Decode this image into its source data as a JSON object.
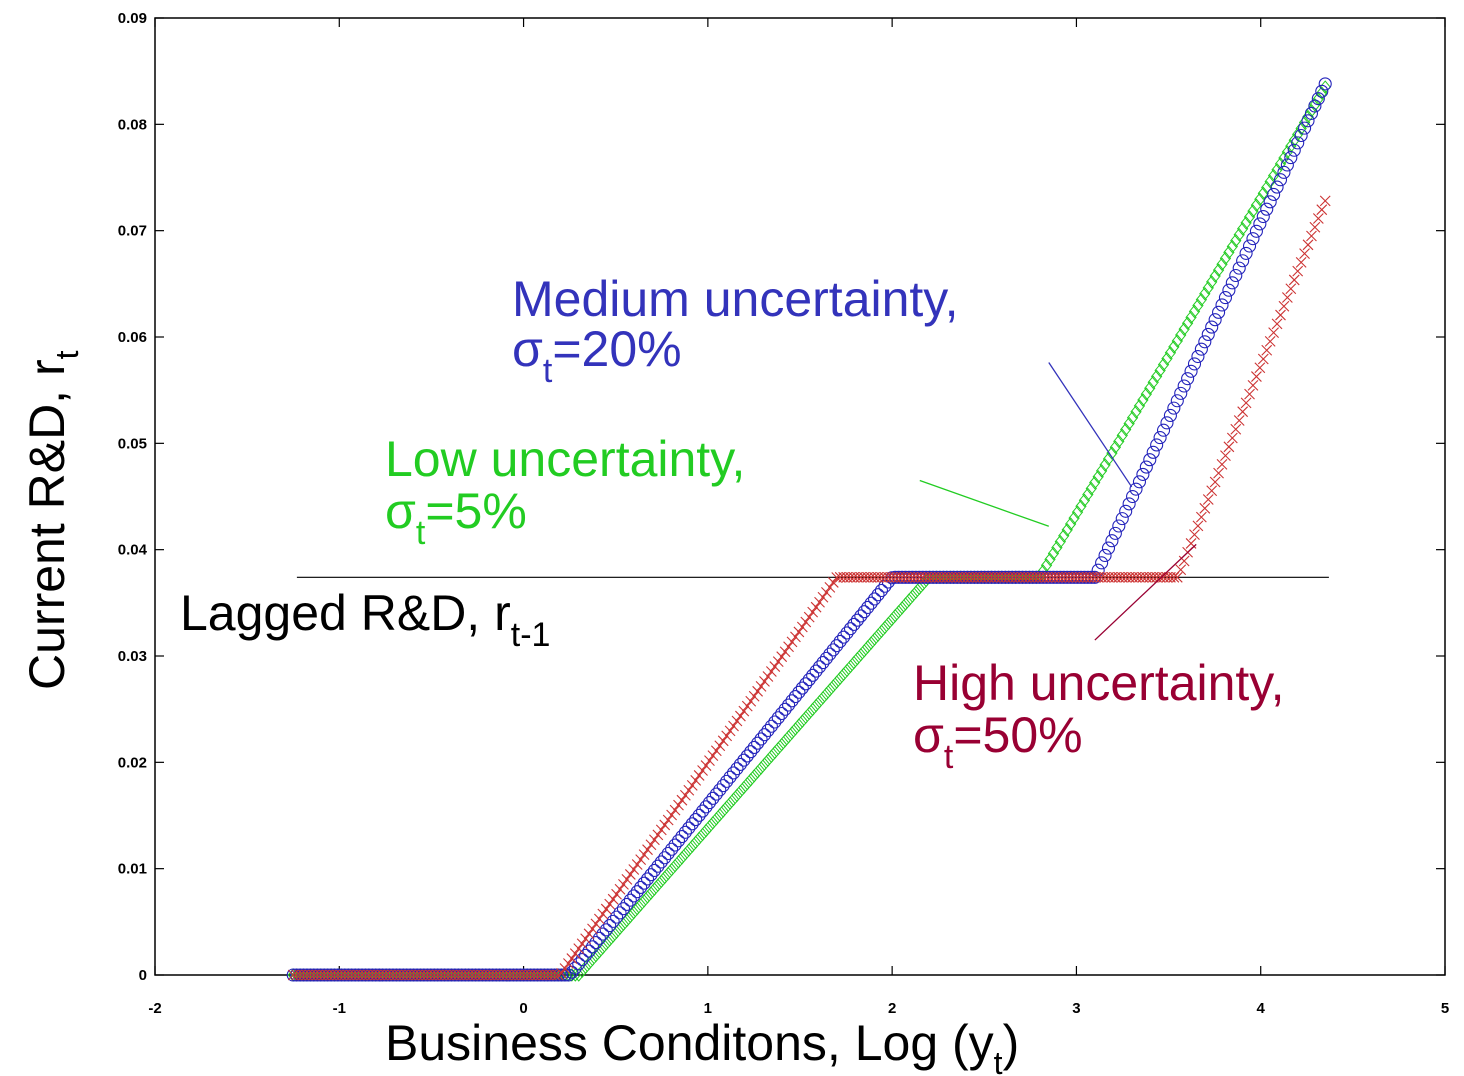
{
  "chart_data": {
    "type": "scatter",
    "title": "",
    "xlabel": "Business Conditons, Log (y",
    "xlabel_sub": "t",
    "xlabel_suffix": ")",
    "ylabel": "Current R&D, r",
    "ylabel_sub": "t",
    "xlim": [
      -2,
      5
    ],
    "ylim": [
      0,
      0.09
    ],
    "xticks": [
      -2,
      -1,
      0,
      1,
      2,
      3,
      4,
      5
    ],
    "xtick_labels": [
      "-2",
      "-1",
      "0",
      "1",
      "2",
      "3",
      "4",
      "5"
    ],
    "yticks": [
      0,
      0.01,
      0.02,
      0.03,
      0.04,
      0.05,
      0.06,
      0.07,
      0.08,
      0.09
    ],
    "ytick_labels": [
      "0",
      "0.01",
      "0.02",
      "0.03",
      "0.04",
      "0.05",
      "0.06",
      "0.07",
      "0.08",
      "0.09"
    ],
    "grid": false,
    "lagged_level": 0.0374,
    "lagged_line_x": [
      -1.23,
      4.37
    ],
    "series": [
      {
        "color": "#22cc22",
        "marker": "diamond",
        "x": [
          -1.25,
          0.3,
          2.2,
          2.8,
          4.35
        ],
        "y": [
          0,
          0,
          0.0374,
          0.0374,
          0.0835
        ]
      },
      {
        "color": "#2222bb",
        "marker": "circle",
        "x": [
          -1.25,
          0.25,
          2.0,
          3.1,
          4.35
        ],
        "y": [
          0,
          0,
          0.0374,
          0.0374,
          0.0838
        ]
      },
      {
        "color": "#cc3333",
        "marker": "x",
        "x": [
          -1.25,
          0.2,
          1.7,
          3.55,
          4.35
        ],
        "y": [
          0,
          0,
          0.0374,
          0.0374,
          0.0728
        ]
      }
    ],
    "annotations": [
      {
        "line1": "Medium uncertainty,",
        "line2_main": "σ",
        "line2_sub": "t",
        "line2_rest": "=20%",
        "color": "#3333bb",
        "pointer": {
          "from": [
            2.85,
            0.0576
          ],
          "to": [
            3.3,
            0.0459
          ]
        }
      },
      {
        "line1": "Low uncertainty,",
        "line2_main": "σ",
        "line2_sub": "t",
        "line2_rest": "=5%",
        "color": "#22cc22",
        "pointer": {
          "from": [
            2.15,
            0.0465
          ],
          "to": [
            2.85,
            0.0422
          ]
        }
      },
      {
        "line1": "Lagged R&D, r",
        "line1_sub": "t-1",
        "color": "#000000"
      },
      {
        "line1": "High uncertainty,",
        "line2_main": "σ",
        "line2_sub": "t",
        "line2_rest": "=50%",
        "color": "#990033",
        "pointer": {
          "from": [
            3.1,
            0.0315
          ],
          "to": [
            3.65,
            0.0405
          ]
        }
      }
    ]
  }
}
